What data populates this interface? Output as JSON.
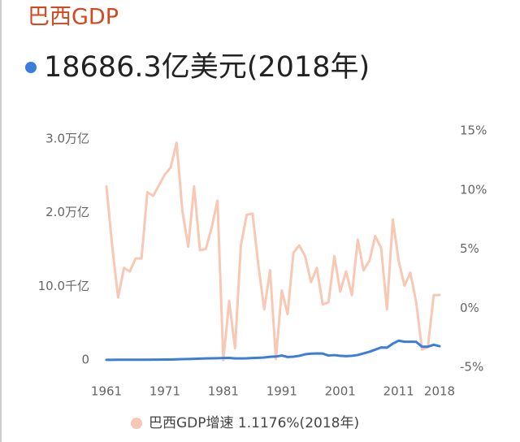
{
  "chart_data": {
    "type": "line",
    "title": "巴西GDP",
    "headline": "18686.3亿美元(2018年)",
    "x": [
      1961,
      1962,
      1963,
      1964,
      1965,
      1966,
      1967,
      1968,
      1969,
      1970,
      1971,
      1972,
      1973,
      1974,
      1975,
      1976,
      1977,
      1978,
      1979,
      1980,
      1981,
      1982,
      1983,
      1984,
      1985,
      1986,
      1987,
      1988,
      1989,
      1990,
      1991,
      1992,
      1993,
      1994,
      1995,
      1996,
      1997,
      1998,
      1999,
      2000,
      2001,
      2002,
      2003,
      2004,
      2005,
      2006,
      2007,
      2008,
      2009,
      2010,
      2011,
      2012,
      2013,
      2014,
      2015,
      2016,
      2017,
      2018
    ],
    "xlim": [
      1961,
      2018
    ],
    "xticks": [
      1961,
      1971,
      1981,
      1991,
      2001,
      2011,
      2018
    ],
    "ylim": [
      0,
      300000
    ],
    "yticks": [
      0,
      {
        "value": 100000,
        "label": "10.0千亿"
      },
      {
        "value": 200000,
        "label": "2.0万亿"
      },
      {
        "value": 300000,
        "label": "3.0万亿"
      }
    ],
    "y2lim": [
      -5,
      15
    ],
    "y2ticks": [
      {
        "value": -5,
        "label": "-5%"
      },
      {
        "value": 0,
        "label": "0%"
      },
      {
        "value": 5,
        "label": "5%"
      },
      {
        "value": 10,
        "label": "10%"
      },
      {
        "value": 15,
        "label": "15%"
      }
    ],
    "series": [
      {
        "color": "#3b7ddd",
        "values": [
          170,
          197,
          230,
          214,
          219,
          277,
          308,
          331,
          359,
          420,
          491,
          585,
          793,
          1050,
          1236,
          1530,
          1765,
          2009,
          2215,
          2350,
          2630,
          2814,
          2033,
          2096,
          2226,
          2680,
          2943,
          3308,
          4256,
          4619,
          6027,
          4004,
          4378,
          5585,
          7696,
          8505,
          8830,
          8637,
          5995,
          6554,
          5595,
          5081,
          5582,
          6692,
          8917,
          11076,
          13971,
          16958,
          16671,
          22089,
          26162,
          24652,
          24729,
          24560,
          18021,
          17960,
          20628,
          18686.3
        ]
      },
      {
        "name": "巴西GDP增速 1.1176%(2018年)",
        "color": "#f8c8b4",
        "axis": "y2",
        "values": [
          10.3,
          5.2,
          0.9,
          3.4,
          3.1,
          4.2,
          4.2,
          9.8,
          9.5,
          10.4,
          11.3,
          11.9,
          14.0,
          8.2,
          5.2,
          10.3,
          4.9,
          5.0,
          6.8,
          9.1,
          -4.4,
          0.6,
          -3.4,
          5.3,
          7.9,
          8.0,
          3.6,
          -0.1,
          3.2,
          -4.3,
          1.5,
          -0.5,
          4.7,
          5.3,
          4.4,
          2.2,
          3.4,
          0.3,
          0.5,
          4.4,
          1.4,
          3.1,
          1.1,
          5.8,
          3.2,
          4.0,
          6.1,
          5.1,
          -0.1,
          7.5,
          4.0,
          1.9,
          3.0,
          0.5,
          -3.5,
          -3.3,
          1.1,
          1.1176
        ]
      }
    ]
  }
}
